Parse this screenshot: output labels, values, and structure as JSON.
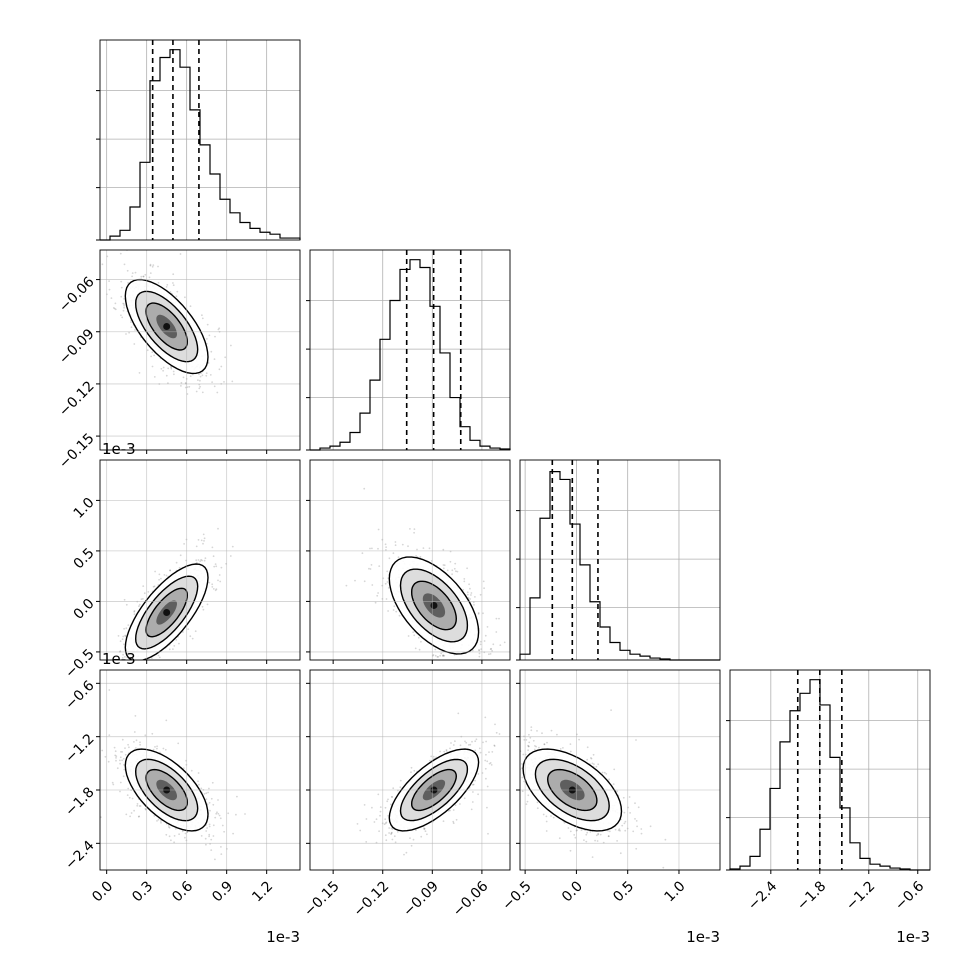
{
  "chart_data": {
    "type": "corner",
    "grid": true,
    "quantile_lines": "dashed",
    "parameters": [
      {
        "id": "p0",
        "scale_text": "1e-3",
        "xlim": [
          -0.05,
          1.45
        ],
        "ticks": [
          0.0,
          0.3,
          0.6,
          0.9,
          1.2
        ],
        "tick_labels": [
          "0.0",
          "0.3",
          "0.6",
          "0.9",
          "1.2"
        ],
        "quantiles": [
          0.345,
          0.497,
          0.692
        ],
        "hist": {
          "edges_start": -0.05,
          "bin_width": 0.075,
          "counts": [
            0,
            0.02,
            0.05,
            0.17,
            0.4,
            0.82,
            0.94,
            0.98,
            0.89,
            0.67,
            0.49,
            0.34,
            0.21,
            0.14,
            0.09,
            0.06,
            0.04,
            0.03,
            0.01,
            0.01
          ]
        },
        "ymax_hist": 1.03
      },
      {
        "id": "p1",
        "scale_text": "",
        "xlim": [
          -0.164,
          -0.043
        ],
        "ticks": [
          -0.15,
          -0.12,
          -0.09,
          -0.06
        ],
        "tick_labels": [
          "−0.15",
          "−0.12",
          "−0.09",
          "−0.06"
        ],
        "quantiles": [
          -0.1055,
          -0.0892,
          -0.0728
        ],
        "hist": {
          "edges_start": -0.164,
          "bin_width": 0.00605,
          "counts": [
            0,
            0.01,
            0.02,
            0.04,
            0.09,
            0.19,
            0.36,
            0.57,
            0.77,
            0.93,
            0.98,
            0.94,
            0.74,
            0.5,
            0.27,
            0.12,
            0.05,
            0.02,
            0.01,
            0.005
          ]
        },
        "ymax_hist": 1.03
      },
      {
        "id": "p2",
        "scale_text": "1e-3",
        "xlim": [
          -0.55,
          1.4
        ],
        "ticks": [
          -0.5,
          0.0,
          0.5,
          1.0
        ],
        "tick_labels": [
          "−0.5",
          "0.0",
          "0.5",
          "1.0"
        ],
        "quantiles": [
          -0.235,
          -0.04,
          0.21
        ],
        "hist": {
          "edges_start": -0.55,
          "bin_width": 0.0975,
          "counts": [
            0.03,
            0.32,
            0.73,
            0.97,
            0.93,
            0.7,
            0.49,
            0.3,
            0.17,
            0.09,
            0.05,
            0.03,
            0.02,
            0.01,
            0.005,
            0,
            0,
            0,
            0,
            0
          ]
        },
        "ymax_hist": 1.03
      },
      {
        "id": "p3",
        "scale_text": "1e-3",
        "xlim": [
          -2.9,
          -0.45
        ],
        "ticks": [
          -2.4,
          -1.8,
          -1.2,
          -0.6
        ],
        "tick_labels": [
          "−2.4",
          "−1.8",
          "−1.2",
          "−0.6"
        ],
        "quantiles": [
          -2.07,
          -1.8,
          -1.53
        ],
        "hist": {
          "edges_start": -2.9,
          "bin_width": 0.1225,
          "counts": [
            0.005,
            0.02,
            0.07,
            0.21,
            0.42,
            0.66,
            0.82,
            0.91,
            0.98,
            0.85,
            0.58,
            0.32,
            0.14,
            0.06,
            0.03,
            0.02,
            0.01,
            0.005,
            0,
            0
          ]
        },
        "ymax_hist": 1.03
      }
    ],
    "row_limits": {
      "p1": [
        -0.158,
        -0.043
      ],
      "p2": [
        -0.58,
        1.4
      ],
      "p3": [
        -2.7,
        -0.45
      ]
    },
    "pairs": [
      {
        "row": 1,
        "col": 0,
        "center": [
          0.45,
          -0.087
        ],
        "sigma": [
          0.155,
          0.0135
        ],
        "rho": -0.65
      },
      {
        "row": 2,
        "col": 0,
        "center": [
          0.45,
          -0.11
        ],
        "sigma": [
          0.155,
          0.24
        ],
        "rho": 0.72
      },
      {
        "row": 2,
        "col": 1,
        "center": [
          -0.089,
          -0.04
        ],
        "sigma": [
          0.0135,
          0.24
        ],
        "rho": -0.55
      },
      {
        "row": 3,
        "col": 0,
        "center": [
          0.45,
          -1.8
        ],
        "sigma": [
          0.155,
          0.23
        ],
        "rho": -0.6
      },
      {
        "row": 3,
        "col": 1,
        "center": [
          -0.089,
          -1.8
        ],
        "sigma": [
          0.0135,
          0.23
        ],
        "rho": 0.68
      },
      {
        "row": 3,
        "col": 2,
        "center": [
          -0.04,
          -1.8
        ],
        "sigma": [
          0.24,
          0.23
        ],
        "rho": -0.52
      }
    ],
    "contour_levels": [
      0.5,
      1.0,
      1.5,
      2.0
    ]
  }
}
